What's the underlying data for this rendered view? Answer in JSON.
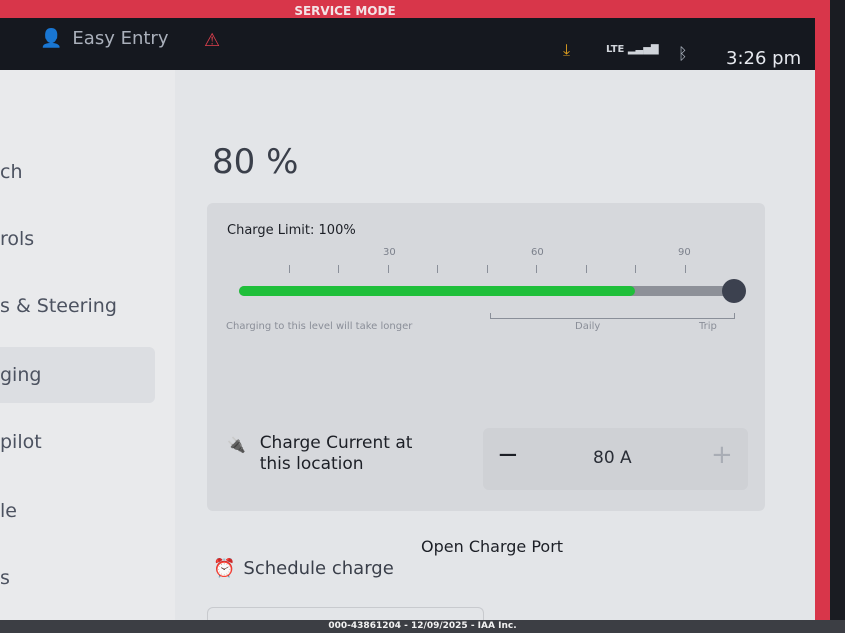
{
  "status_bar": {
    "banner": "SERVICE MODE",
    "profile": "Easy Entry",
    "network": "LTE",
    "time": "3:26 pm",
    "icons": [
      "person-icon",
      "warning-icon",
      "download-icon",
      "signal-icon",
      "bluetooth-icon"
    ]
  },
  "sidebar": {
    "items": [
      {
        "label": "ch"
      },
      {
        "label": "rols"
      },
      {
        "label": "s & Steering"
      },
      {
        "label": "ging",
        "active": true
      },
      {
        "label": "pilot"
      },
      {
        "label": "le"
      },
      {
        "label": "s"
      }
    ]
  },
  "charging": {
    "battery_level": "80 %",
    "charge_limit_label": "Charge Limit: 100%",
    "charge_limit_percent": 100,
    "battery_fill_percent": 80,
    "ticks": [
      "30",
      "60",
      "90"
    ],
    "hint": "Charging to this level will take longer",
    "daily_label": "Daily",
    "trip_label": "Trip",
    "charge_current_label": "Charge Current at this location",
    "current_value": "80 A",
    "open_port_label": "Open Charge Port",
    "schedule_label": "Schedule charge"
  },
  "accent": {
    "charge": "#1fbf3a",
    "service": "#d8364a"
  },
  "footer": "000-43861204 - 12/09/2025 - IAA Inc."
}
